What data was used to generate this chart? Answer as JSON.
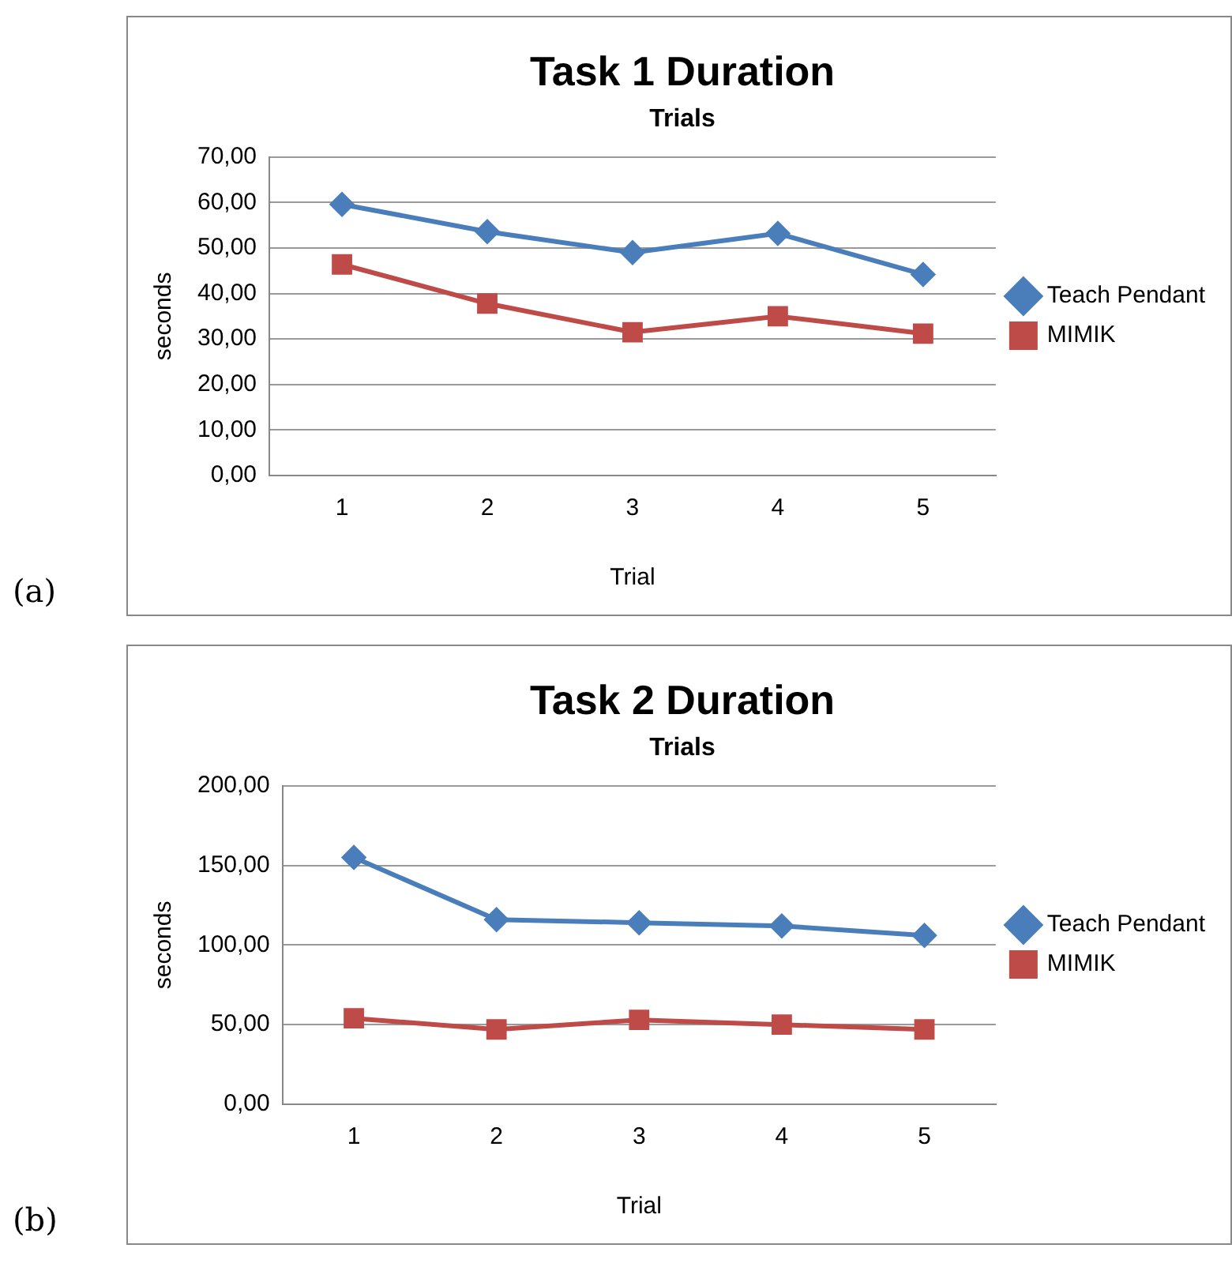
{
  "chart_data": [
    {
      "type": "line",
      "title": "Task 1 Duration",
      "subtitle": "Trials",
      "xlabel": "Trial",
      "ylabel": "seconds",
      "categories": [
        "1",
        "2",
        "3",
        "4",
        "5"
      ],
      "series": [
        {
          "name": "Teach Pendant",
          "color": "#4a7ebb",
          "marker": "diamond",
          "values": [
            59.6,
            53.6,
            49.0,
            53.2,
            44.2
          ]
        },
        {
          "name": "MIMIK",
          "color": "#be4b48",
          "marker": "square",
          "values": [
            46.4,
            37.8,
            31.5,
            35.0,
            31.2
          ]
        }
      ],
      "ylim": [
        0,
        70
      ],
      "yticks": [
        {
          "value": 0,
          "label": "0,00"
        },
        {
          "value": 10,
          "label": "10,00"
        },
        {
          "value": 20,
          "label": "20,00"
        },
        {
          "value": 30,
          "label": "30,00"
        },
        {
          "value": 40,
          "label": "40,00"
        },
        {
          "value": 50,
          "label": "50,00"
        },
        {
          "value": 60,
          "label": "60,00"
        },
        {
          "value": 70,
          "label": "70,00"
        }
      ],
      "grid": "y",
      "legend": "right",
      "line_style": "solid",
      "annotations": [
        "(a)"
      ]
    },
    {
      "type": "line",
      "title": "Task 2 Duration",
      "subtitle": "Trials",
      "xlabel": "Trial",
      "ylabel": "seconds",
      "categories": [
        "1",
        "2",
        "3",
        "4",
        "5"
      ],
      "series": [
        {
          "name": "Teach Pendant",
          "color": "#4a7ebb",
          "marker": "diamond",
          "values": [
            155,
            116,
            114,
            112,
            106
          ]
        },
        {
          "name": "MIMIK",
          "color": "#be4b48",
          "marker": "square",
          "values": [
            54,
            47,
            53,
            50,
            47
          ]
        }
      ],
      "ylim": [
        0,
        200
      ],
      "yticks": [
        {
          "value": 0,
          "label": "0,00"
        },
        {
          "value": 50,
          "label": "50,00"
        },
        {
          "value": 100,
          "label": "100,00"
        },
        {
          "value": 150,
          "label": "150,00"
        },
        {
          "value": 200,
          "label": "200,00"
        }
      ],
      "grid": "y",
      "legend": "right",
      "line_style": "solid",
      "annotations": [
        "(b)"
      ]
    }
  ]
}
